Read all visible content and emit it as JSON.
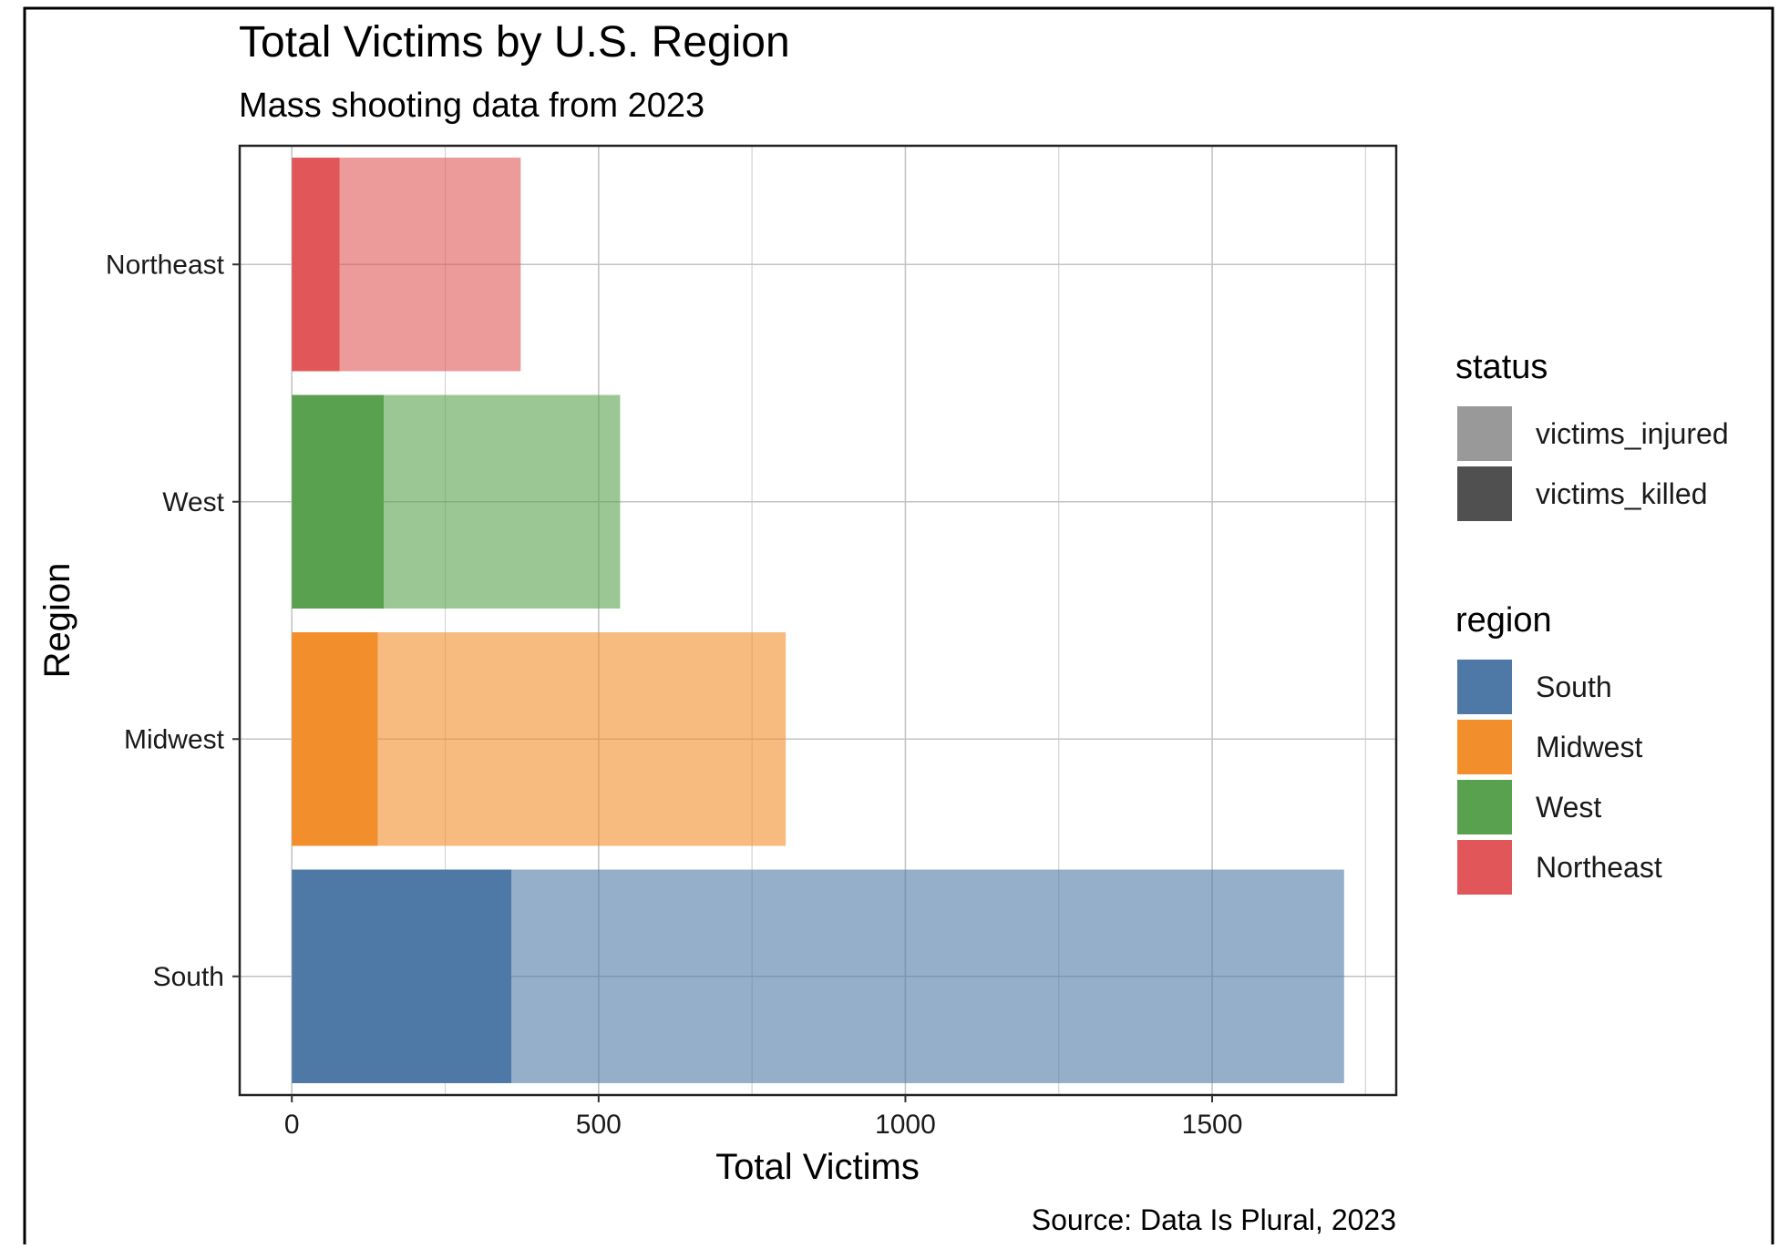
{
  "chart_data": {
    "type": "bar",
    "orientation": "horizontal",
    "stacked": true,
    "title": "Total Victims by U.S. Region",
    "subtitle": "Mass shooting data from 2023",
    "xlabel": "Total Victims",
    "ylabel": "Region",
    "caption": "Source: Data Is Plural, 2023",
    "xlim": [
      -85,
      1800
    ],
    "xticks": [
      0,
      500,
      1000,
      1500
    ],
    "xtick_labels": [
      "0",
      "500",
      "1000",
      "1500"
    ],
    "grid": true,
    "categories": [
      "Northeast",
      "West",
      "Midwest",
      "South"
    ],
    "series": [
      {
        "name": "victims_killed",
        "values": [
          78,
          150,
          140,
          358
        ]
      },
      {
        "name": "victims_injured",
        "values": [
          295,
          385,
          665,
          1357
        ]
      }
    ],
    "region_colors": {
      "South": "#4e79a7",
      "Midwest": "#f28e2b",
      "West": "#59a14f",
      "Northeast": "#e15759"
    },
    "legend_placement": "right",
    "legend": {
      "status": {
        "title": "status",
        "items": [
          {
            "label": "victims_injured",
            "color": "#999999"
          },
          {
            "label": "victims_killed",
            "color": "#505050"
          }
        ]
      },
      "region": {
        "title": "region",
        "items": [
          {
            "label": "South",
            "color": "#4e79a7"
          },
          {
            "label": "Midwest",
            "color": "#f28e2b"
          },
          {
            "label": "West",
            "color": "#59a14f"
          },
          {
            "label": "Northeast",
            "color": "#e15759"
          }
        ]
      }
    }
  }
}
